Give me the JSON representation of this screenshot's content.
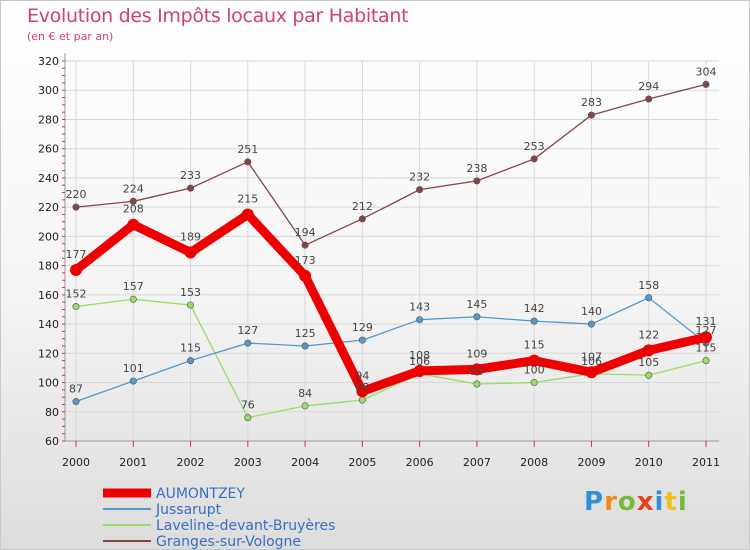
{
  "chart_data": {
    "type": "line",
    "title": "Evolution des Impôts locaux par Habitant",
    "subtitle": "(en € et par an)",
    "xlabel": "",
    "ylabel": "",
    "ylim": [
      60,
      320
    ],
    "yticks": [
      60,
      80,
      100,
      120,
      140,
      160,
      180,
      200,
      220,
      240,
      260,
      280,
      300,
      320
    ],
    "x": [
      "2000",
      "2001",
      "2002",
      "2003",
      "2004",
      "2005",
      "2006",
      "2007",
      "2008",
      "2009",
      "2010",
      "2011"
    ],
    "series": [
      {
        "name": "AUMONTZEY",
        "color": "#ee0000",
        "values": [
          177,
          208,
          189,
          215,
          173,
          94,
          108,
          109,
          115,
          107,
          122,
          131
        ],
        "labels": [
          "177",
          "208",
          "189",
          "215",
          "173",
          "94",
          "108",
          "109",
          "115",
          "107",
          "122",
          "131"
        ]
      },
      {
        "name": "Jussarupt",
        "color": "#5599cc",
        "values": [
          87,
          101,
          115,
          127,
          125,
          129,
          143,
          145,
          142,
          140,
          158,
          127
        ],
        "labels": [
          "87",
          "101",
          "115",
          "127",
          "125",
          "129",
          "143",
          "145",
          "142",
          "140",
          "158",
          "127"
        ]
      },
      {
        "name": "Laveline-devant-Bruyères",
        "color": "#99dd66",
        "values": [
          152,
          157,
          153,
          76,
          84,
          88,
          106,
          99,
          100,
          106,
          105,
          115
        ],
        "labels": [
          "152",
          "157",
          "153",
          "76",
          "84",
          "88",
          "106",
          "99",
          "100",
          "106",
          "105",
          "115"
        ]
      },
      {
        "name": "Granges-sur-Vologne",
        "color": "#884444",
        "values": [
          220,
          224,
          233,
          251,
          194,
          212,
          232,
          238,
          253,
          283,
          294,
          304
        ],
        "labels": [
          "220",
          "224",
          "233",
          "251",
          "194",
          "212",
          "232",
          "238",
          "253",
          "283",
          "294",
          "304"
        ]
      }
    ]
  },
  "logo_text": {
    "p": "P",
    "r": "r",
    "o": "o",
    "x": "x",
    "i1": "i",
    "t": "t",
    "i2": "i"
  }
}
